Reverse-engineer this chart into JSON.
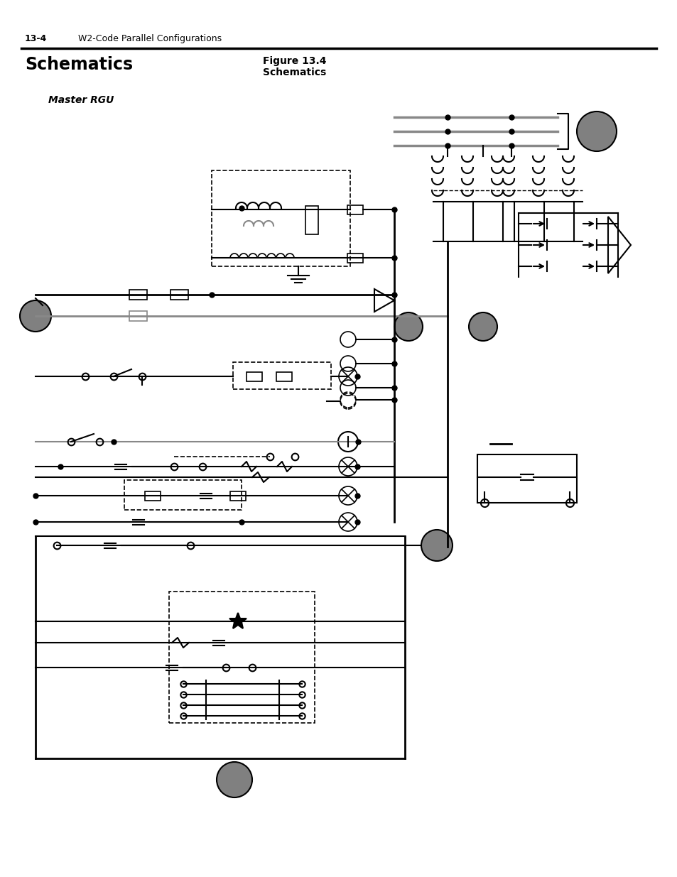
{
  "page_header": "13-4",
  "page_header_text": "W2-Code Parallel Configurations",
  "title_left": "Schematics",
  "title_center": "Figure 13.4",
  "title_center2": "Schematics",
  "subtitle": "Master RGU",
  "bg_color": "#ffffff",
  "line_color": "#000000",
  "gray_line_color": "#888888",
  "dashed_box_color": "#000000",
  "circle_node_color": "#000000",
  "gray_circle_color": "#808080"
}
